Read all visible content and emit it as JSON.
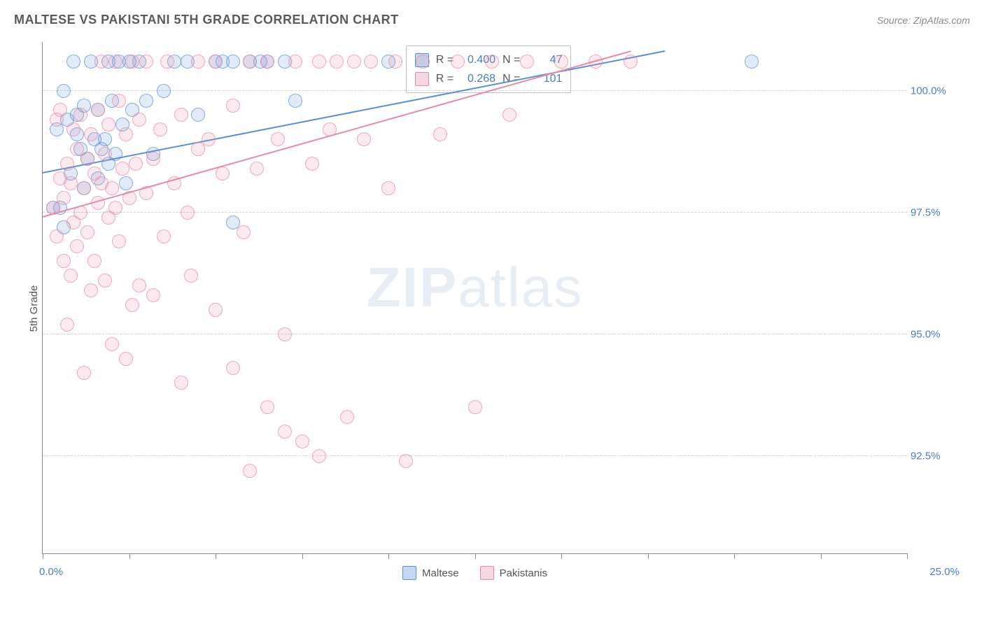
{
  "title": "MALTESE VS PAKISTANI 5TH GRADE CORRELATION CHART",
  "source": "Source: ZipAtlas.com",
  "watermark_bold": "ZIP",
  "watermark_light": "atlas",
  "chart": {
    "type": "scatter",
    "yaxis_title": "5th Grade",
    "xlim": [
      0,
      25
    ],
    "ylim": [
      90.5,
      101
    ],
    "xtick_positions": [
      0,
      2.5,
      5,
      7.5,
      10,
      12.5,
      15,
      17.5,
      20,
      22.5,
      25
    ],
    "xaxis_label_left": "0.0%",
    "xaxis_label_right": "25.0%",
    "yticks": [
      {
        "v": 92.5,
        "label": "92.5%"
      },
      {
        "v": 95.0,
        "label": "95.0%"
      },
      {
        "v": 97.5,
        "label": "97.5%"
      },
      {
        "v": 100.0,
        "label": "100.0%"
      }
    ],
    "background_color": "#ffffff",
    "grid_color": "#d0d0d0",
    "axis_color": "#888888",
    "tick_label_color": "#4a7bc8",
    "marker_radius": 9,
    "marker_fill_opacity": 0.18,
    "marker_stroke_opacity": 0.7,
    "marker_stroke_width": 1,
    "series": [
      {
        "name": "Maltese",
        "color": "#5a8fd6",
        "stats": {
          "r": "0.400",
          "n": "47"
        },
        "trend": {
          "x1": 0,
          "y1": 98.3,
          "x2": 18,
          "y2": 100.8
        },
        "points": [
          [
            0.3,
            97.6
          ],
          [
            0.4,
            99.2
          ],
          [
            0.5,
            97.6
          ],
          [
            0.6,
            97.2
          ],
          [
            0.6,
            100.0
          ],
          [
            0.7,
            99.4
          ],
          [
            0.8,
            98.3
          ],
          [
            0.9,
            100.6
          ],
          [
            1.0,
            99.5
          ],
          [
            1.0,
            99.1
          ],
          [
            1.1,
            98.8
          ],
          [
            1.2,
            99.7
          ],
          [
            1.2,
            98.0
          ],
          [
            1.3,
            98.6
          ],
          [
            1.4,
            100.6
          ],
          [
            1.5,
            99.0
          ],
          [
            1.6,
            99.6
          ],
          [
            1.6,
            98.2
          ],
          [
            1.7,
            98.8
          ],
          [
            1.8,
            99.0
          ],
          [
            1.9,
            100.6
          ],
          [
            1.9,
            98.5
          ],
          [
            2.0,
            99.8
          ],
          [
            2.1,
            98.7
          ],
          [
            2.2,
            100.6
          ],
          [
            2.3,
            99.3
          ],
          [
            2.4,
            98.1
          ],
          [
            2.5,
            100.6
          ],
          [
            2.6,
            99.6
          ],
          [
            2.8,
            100.6
          ],
          [
            3.0,
            99.8
          ],
          [
            3.2,
            98.7
          ],
          [
            3.5,
            100.0
          ],
          [
            3.8,
            100.6
          ],
          [
            4.2,
            100.6
          ],
          [
            4.5,
            99.5
          ],
          [
            5.0,
            100.6
          ],
          [
            5.2,
            100.6
          ],
          [
            5.5,
            97.3
          ],
          [
            5.5,
            100.6
          ],
          [
            6.0,
            100.6
          ],
          [
            6.3,
            100.6
          ],
          [
            6.5,
            100.6
          ],
          [
            7.0,
            100.6
          ],
          [
            7.3,
            99.8
          ],
          [
            10.0,
            100.6
          ],
          [
            20.5,
            100.6
          ]
        ]
      },
      {
        "name": "Pakistanis",
        "color": "#e68aa5",
        "stats": {
          "r": "0.268",
          "n": "101"
        },
        "trend": {
          "x1": 0,
          "y1": 97.4,
          "x2": 17,
          "y2": 100.8
        },
        "points": [
          [
            0.3,
            97.6
          ],
          [
            0.4,
            99.4
          ],
          [
            0.4,
            97.0
          ],
          [
            0.5,
            98.2
          ],
          [
            0.5,
            99.6
          ],
          [
            0.6,
            96.5
          ],
          [
            0.6,
            97.8
          ],
          [
            0.7,
            95.2
          ],
          [
            0.7,
            98.5
          ],
          [
            0.8,
            96.2
          ],
          [
            0.8,
            98.1
          ],
          [
            0.9,
            99.2
          ],
          [
            0.9,
            97.3
          ],
          [
            1.0,
            98.8
          ],
          [
            1.0,
            96.8
          ],
          [
            1.1,
            97.5
          ],
          [
            1.1,
            99.5
          ],
          [
            1.2,
            98.0
          ],
          [
            1.2,
            94.2
          ],
          [
            1.3,
            98.6
          ],
          [
            1.3,
            97.1
          ],
          [
            1.4,
            95.9
          ],
          [
            1.4,
            99.1
          ],
          [
            1.5,
            98.3
          ],
          [
            1.5,
            96.5
          ],
          [
            1.6,
            97.7
          ],
          [
            1.6,
            99.6
          ],
          [
            1.7,
            98.1
          ],
          [
            1.7,
            100.6
          ],
          [
            1.8,
            96.1
          ],
          [
            1.8,
            98.7
          ],
          [
            1.9,
            97.4
          ],
          [
            1.9,
            99.3
          ],
          [
            2.0,
            94.8
          ],
          [
            2.0,
            98.0
          ],
          [
            2.1,
            100.6
          ],
          [
            2.1,
            97.6
          ],
          [
            2.2,
            99.8
          ],
          [
            2.2,
            96.9
          ],
          [
            2.3,
            98.4
          ],
          [
            2.4,
            94.5
          ],
          [
            2.4,
            99.1
          ],
          [
            2.5,
            97.8
          ],
          [
            2.6,
            100.6
          ],
          [
            2.6,
            95.6
          ],
          [
            2.7,
            98.5
          ],
          [
            2.8,
            96.0
          ],
          [
            2.8,
            99.4
          ],
          [
            3.0,
            97.9
          ],
          [
            3.0,
            100.6
          ],
          [
            3.2,
            95.8
          ],
          [
            3.2,
            98.6
          ],
          [
            3.4,
            99.2
          ],
          [
            3.5,
            97.0
          ],
          [
            3.6,
            100.6
          ],
          [
            3.8,
            98.1
          ],
          [
            4.0,
            94.0
          ],
          [
            4.0,
            99.5
          ],
          [
            4.2,
            97.5
          ],
          [
            4.3,
            96.2
          ],
          [
            4.5,
            100.6
          ],
          [
            4.5,
            98.8
          ],
          [
            4.8,
            99.0
          ],
          [
            5.0,
            95.5
          ],
          [
            5.0,
            100.6
          ],
          [
            5.2,
            98.3
          ],
          [
            5.5,
            94.3
          ],
          [
            5.5,
            99.7
          ],
          [
            5.8,
            97.1
          ],
          [
            6.0,
            100.6
          ],
          [
            6.0,
            92.2
          ],
          [
            6.2,
            98.4
          ],
          [
            6.5,
            93.5
          ],
          [
            6.5,
            100.6
          ],
          [
            6.8,
            99.0
          ],
          [
            7.0,
            95.0
          ],
          [
            7.0,
            93.0
          ],
          [
            7.3,
            100.6
          ],
          [
            7.5,
            92.8
          ],
          [
            7.8,
            98.5
          ],
          [
            8.0,
            100.6
          ],
          [
            8.0,
            92.5
          ],
          [
            8.3,
            99.2
          ],
          [
            8.5,
            100.6
          ],
          [
            8.8,
            93.3
          ],
          [
            9.0,
            100.6
          ],
          [
            9.3,
            99.0
          ],
          [
            9.5,
            100.6
          ],
          [
            10.0,
            98.0
          ],
          [
            10.2,
            100.6
          ],
          [
            10.5,
            92.4
          ],
          [
            11.0,
            100.6
          ],
          [
            11.5,
            99.1
          ],
          [
            12.0,
            100.6
          ],
          [
            12.5,
            93.5
          ],
          [
            13.0,
            100.6
          ],
          [
            13.5,
            99.5
          ],
          [
            14.0,
            100.6
          ],
          [
            15.0,
            100.6
          ],
          [
            16.0,
            100.6
          ],
          [
            17.0,
            100.6
          ]
        ]
      }
    ],
    "stats_legend": {
      "r_label": "R =",
      "n_label": "N ="
    }
  }
}
